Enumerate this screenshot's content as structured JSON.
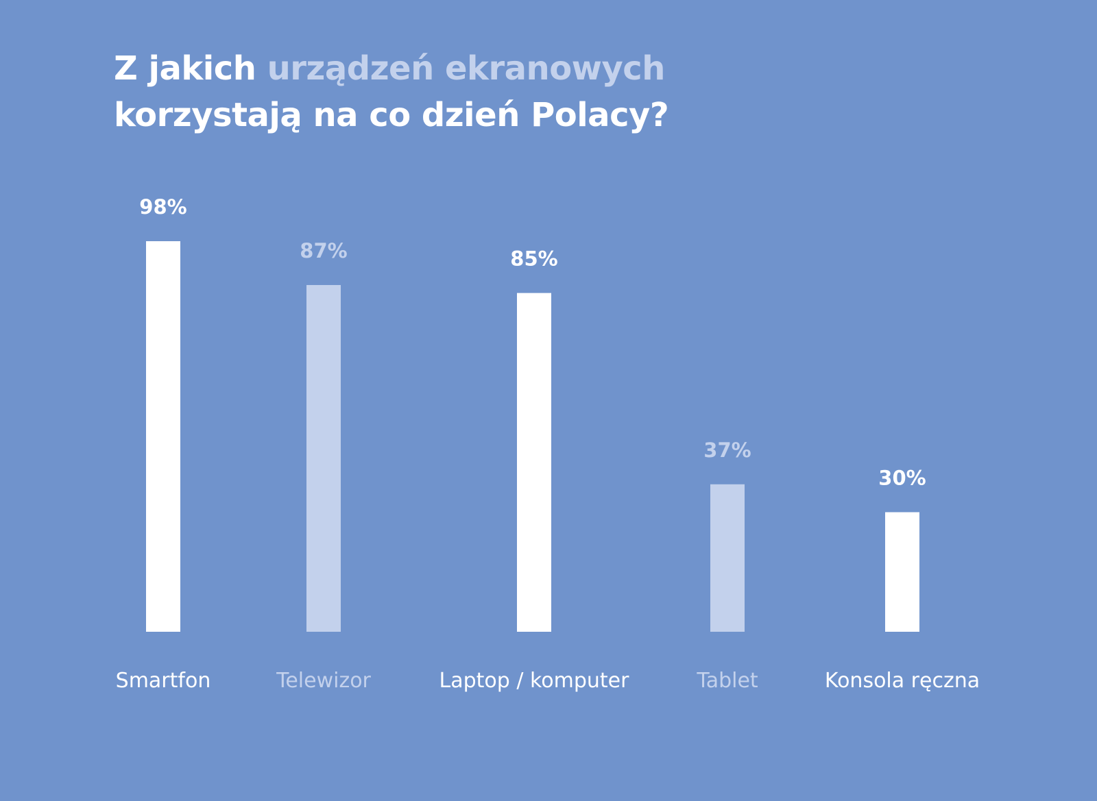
{
  "colors": {
    "background": "#7093cc",
    "primary": "#ffffff",
    "muted": "#c3d1ec"
  },
  "chart_data": {
    "type": "bar",
    "title": {
      "part1": "Z jakich ",
      "part2_highlight": "urządzeń ekranowych",
      "part3": "korzystają na co dzień Polacy?"
    },
    "categories": [
      "Smartfon",
      "Telewizor",
      "Laptop / komputer",
      "Tablet",
      "Konsola ręczna"
    ],
    "values": [
      98,
      87,
      85,
      37,
      30
    ],
    "value_labels": [
      "98%",
      "87%",
      "85%",
      "37%",
      "30%"
    ],
    "bar_styles": [
      "primary",
      "muted",
      "primary",
      "muted",
      "primary"
    ],
    "unit": "%",
    "ylim": [
      0,
      100
    ],
    "grid": false,
    "legend": "none"
  }
}
